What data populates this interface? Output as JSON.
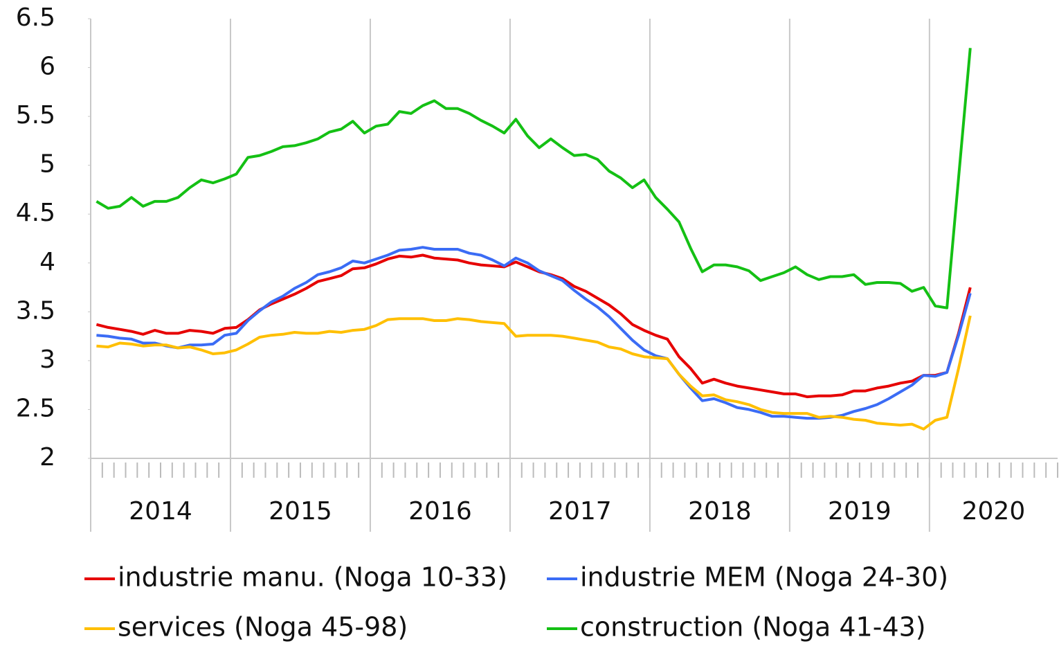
{
  "chart_data": {
    "type": "line",
    "categories": [
      null,
      null,
      null,
      null,
      null,
      null,
      null,
      null,
      null,
      null,
      null,
      null,
      null,
      null,
      null,
      null,
      null,
      null,
      null,
      null,
      null,
      null,
      null,
      null,
      null,
      null,
      null,
      null,
      null,
      null,
      null,
      null,
      null,
      null,
      null,
      null,
      null,
      null,
      null,
      null,
      null,
      null,
      null,
      null,
      null,
      null,
      null,
      null,
      null,
      null,
      null,
      null,
      null,
      null,
      null,
      null,
      null,
      null,
      null,
      null,
      null,
      null,
      null,
      null,
      null,
      null,
      null,
      null,
      null,
      null,
      null,
      null,
      null,
      null,
      null,
      null,
      null,
      null,
      null,
      null,
      null,
      null,
      null
    ],
    "category_groups": [
      "2014",
      "2015",
      "2016",
      "2017",
      "2018",
      "2019",
      "2020"
    ],
    "ylim": [
      2,
      6.5
    ],
    "yticks": [
      2,
      2.5,
      3,
      3.5,
      4,
      4.5,
      5,
      5.5,
      6,
      6.5
    ],
    "grid": "x",
    "legend": "bottom",
    "series": [
      {
        "name": "industrie manu. (Noga 10-33)",
        "color": "#e60000",
        "values": [
          3.37,
          3.34,
          3.32,
          3.3,
          3.27,
          3.31,
          3.28,
          3.28,
          3.31,
          3.3,
          3.28,
          3.33,
          3.34,
          3.42,
          3.52,
          3.58,
          3.63,
          3.68,
          3.74,
          3.81,
          3.84,
          3.87,
          3.94,
          3.95,
          3.99,
          4.04,
          4.07,
          4.06,
          4.08,
          4.05,
          4.04,
          4.03,
          4.0,
          3.98,
          3.97,
          3.96,
          4.01,
          3.96,
          3.91,
          3.88,
          3.84,
          3.76,
          3.71,
          3.64,
          3.57,
          3.48,
          3.37,
          3.31,
          3.26,
          3.22,
          3.04,
          2.92,
          2.77,
          2.81,
          2.77,
          2.74,
          2.72,
          2.7,
          2.68,
          2.66,
          2.66,
          2.63,
          2.64,
          2.64,
          2.65,
          2.69,
          2.69,
          2.72,
          2.74,
          2.77,
          2.79,
          2.85,
          2.85,
          2.88,
          3.28,
          3.75,
          null,
          null,
          null,
          null,
          null,
          null,
          null
        ]
      },
      {
        "name": "industrie MEM (Noga 24-30)",
        "color": "#3b6cf5",
        "values": [
          3.26,
          3.25,
          3.23,
          3.22,
          3.18,
          3.18,
          3.15,
          3.13,
          3.16,
          3.16,
          3.17,
          3.26,
          3.28,
          3.41,
          3.51,
          3.6,
          3.66,
          3.74,
          3.8,
          3.88,
          3.91,
          3.95,
          4.02,
          4.0,
          4.04,
          4.08,
          4.13,
          4.14,
          4.16,
          4.14,
          4.14,
          4.14,
          4.1,
          4.08,
          4.03,
          3.97,
          4.05,
          4.0,
          3.92,
          3.87,
          3.82,
          3.72,
          3.63,
          3.55,
          3.45,
          3.33,
          3.21,
          3.11,
          3.05,
          3.02,
          2.86,
          2.72,
          2.59,
          2.61,
          2.57,
          2.52,
          2.5,
          2.47,
          2.43,
          2.43,
          2.42,
          2.41,
          2.41,
          2.42,
          2.44,
          2.48,
          2.51,
          2.55,
          2.61,
          2.68,
          2.75,
          2.85,
          2.84,
          2.88,
          3.26,
          3.69,
          null,
          null,
          null,
          null,
          null,
          null,
          null
        ]
      },
      {
        "name": "services (Noga 45-98)",
        "color": "#ffbf00",
        "values": [
          3.15,
          3.14,
          3.18,
          3.17,
          3.15,
          3.16,
          3.16,
          3.13,
          3.14,
          3.11,
          3.07,
          3.08,
          3.11,
          3.17,
          3.24,
          3.26,
          3.27,
          3.29,
          3.28,
          3.28,
          3.3,
          3.29,
          3.31,
          3.32,
          3.36,
          3.42,
          3.43,
          3.43,
          3.43,
          3.41,
          3.41,
          3.43,
          3.42,
          3.4,
          3.39,
          3.38,
          3.25,
          3.26,
          3.26,
          3.26,
          3.25,
          3.23,
          3.21,
          3.19,
          3.14,
          3.12,
          3.07,
          3.04,
          3.03,
          3.02,
          2.86,
          2.74,
          2.64,
          2.65,
          2.6,
          2.58,
          2.55,
          2.5,
          2.47,
          2.46,
          2.46,
          2.46,
          2.42,
          2.43,
          2.42,
          2.4,
          2.39,
          2.36,
          2.35,
          2.34,
          2.35,
          2.3,
          2.39,
          2.42,
          2.92,
          3.46,
          null,
          null,
          null,
          null,
          null,
          null,
          null
        ]
      },
      {
        "name": "construction (Noga 41-43)",
        "color": "#14c014",
        "values": [
          4.63,
          4.56,
          4.58,
          4.67,
          4.58,
          4.63,
          4.63,
          4.67,
          4.77,
          4.85,
          4.82,
          4.86,
          4.91,
          5.08,
          5.1,
          5.14,
          5.19,
          5.2,
          5.23,
          5.27,
          5.34,
          5.37,
          5.45,
          5.33,
          5.4,
          5.42,
          5.55,
          5.53,
          5.61,
          5.66,
          5.58,
          5.58,
          5.53,
          5.46,
          5.4,
          5.33,
          5.47,
          5.3,
          5.18,
          5.27,
          5.18,
          5.1,
          5.11,
          5.06,
          4.94,
          4.87,
          4.77,
          4.85,
          4.67,
          4.55,
          4.42,
          4.15,
          3.91,
          3.98,
          3.98,
          3.96,
          3.92,
          3.82,
          3.86,
          3.9,
          3.96,
          3.88,
          3.83,
          3.86,
          3.86,
          3.88,
          3.78,
          3.8,
          3.8,
          3.79,
          3.71,
          3.75,
          3.56,
          3.54,
          4.87,
          6.2,
          null,
          null,
          null,
          null,
          null,
          null,
          null
        ]
      }
    ]
  }
}
